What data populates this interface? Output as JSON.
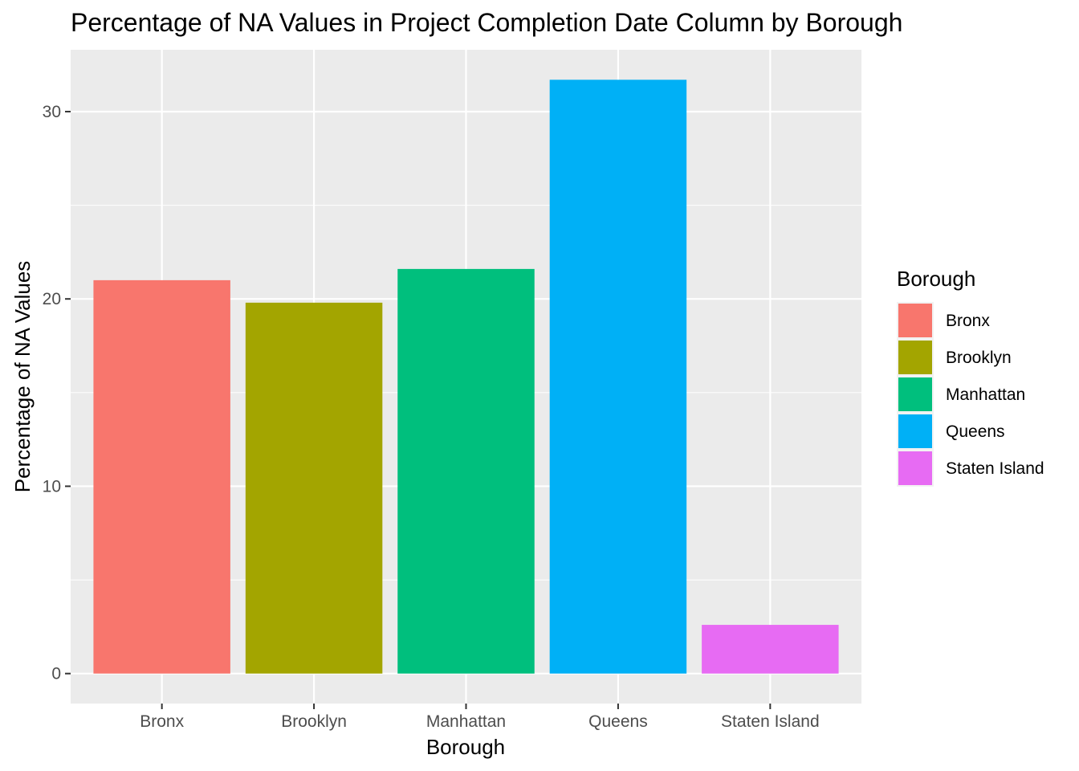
{
  "chart_data": {
    "type": "bar",
    "title": "Percentage of NA Values in Project Completion Date Column by Borough",
    "xlabel": "Borough",
    "ylabel": "Percentage of NA Values",
    "categories": [
      "Bronx",
      "Brooklyn",
      "Manhattan",
      "Queens",
      "Staten Island"
    ],
    "values": [
      21.0,
      19.8,
      21.6,
      31.7,
      2.6
    ],
    "colors": [
      "#F8766D",
      "#A3A500",
      "#00BF7D",
      "#00B0F6",
      "#E76BF3"
    ],
    "ylim": [
      -1.6,
      33.3
    ],
    "yticks": [
      0,
      10,
      20,
      30
    ],
    "grid": true,
    "legend": {
      "title": "Borough",
      "placement": "right",
      "items": [
        "Bronx",
        "Brooklyn",
        "Manhattan",
        "Queens",
        "Staten Island"
      ]
    }
  }
}
